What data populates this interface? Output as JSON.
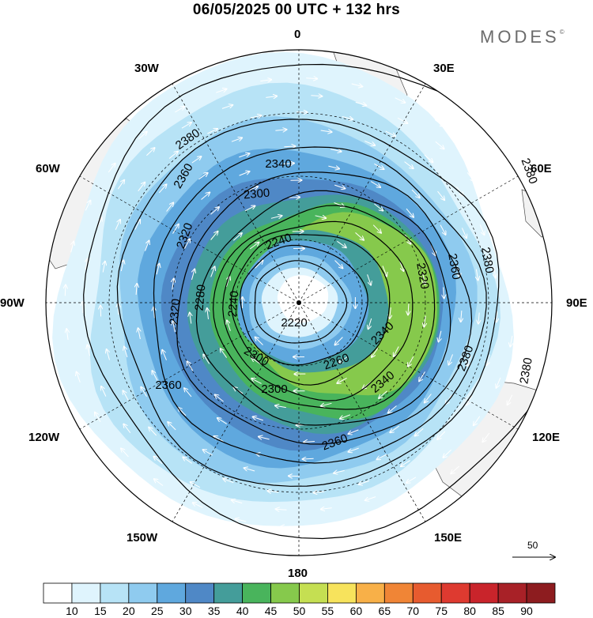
{
  "header": {
    "title": "06/05/2025  00 UTC  + 132 hrs",
    "brand": "MODES",
    "brand_mark": "©"
  },
  "map": {
    "projection": "polar-stereographic-south",
    "longitude_labels": [
      "0",
      "30E",
      "60E",
      "90E",
      "120E",
      "150E",
      "180",
      "150W",
      "120W",
      "90W",
      "60W",
      "30W"
    ],
    "contour_labels": [
      "2380",
      "2360",
      "2340",
      "2320",
      "2300",
      "2280",
      "2260",
      "2240",
      "2220"
    ],
    "reference_vector": {
      "value": "50"
    },
    "colors": {
      "land": "#f2f2f2",
      "coast": "#4a4a4a",
      "contour": "#000000",
      "wind_arrow": "#ffffff"
    }
  },
  "colorbar": {
    "ticks": [
      "10",
      "15",
      "20",
      "25",
      "30",
      "35",
      "40",
      "45",
      "50",
      "55",
      "60",
      "65",
      "70",
      "75",
      "80",
      "85",
      "90"
    ],
    "colors": [
      "#ffffff",
      "#dff4fd",
      "#b7e3f6",
      "#8fcbef",
      "#5fa8de",
      "#4f88c6",
      "#449d9a",
      "#49b45c",
      "#86c94c",
      "#c5df52",
      "#f7e35c",
      "#f8b048",
      "#f08536",
      "#e75b2f",
      "#de3a30",
      "#c9242b",
      "#a82127",
      "#8d1c1f"
    ]
  }
}
